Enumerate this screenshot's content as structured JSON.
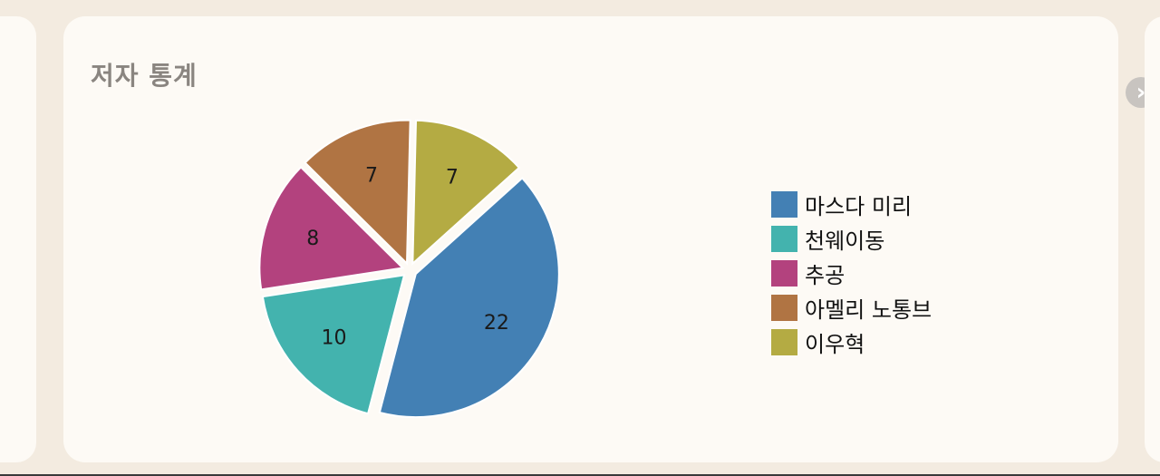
{
  "card": {
    "title": "저자 통계"
  },
  "icons": {
    "next": "chevron-right-icon"
  },
  "chart_data": {
    "type": "pie",
    "title": "저자 통계",
    "categories": [
      "마스다 미리",
      "천웨이동",
      "추공",
      "아멜리 노통브",
      "이우혁"
    ],
    "values": [
      22,
      10,
      8,
      7,
      7
    ],
    "colors": [
      "#4380b4",
      "#43b3ae",
      "#b3427e",
      "#b07443",
      "#b4ab43"
    ],
    "legend_position": "right",
    "exploded": true
  }
}
